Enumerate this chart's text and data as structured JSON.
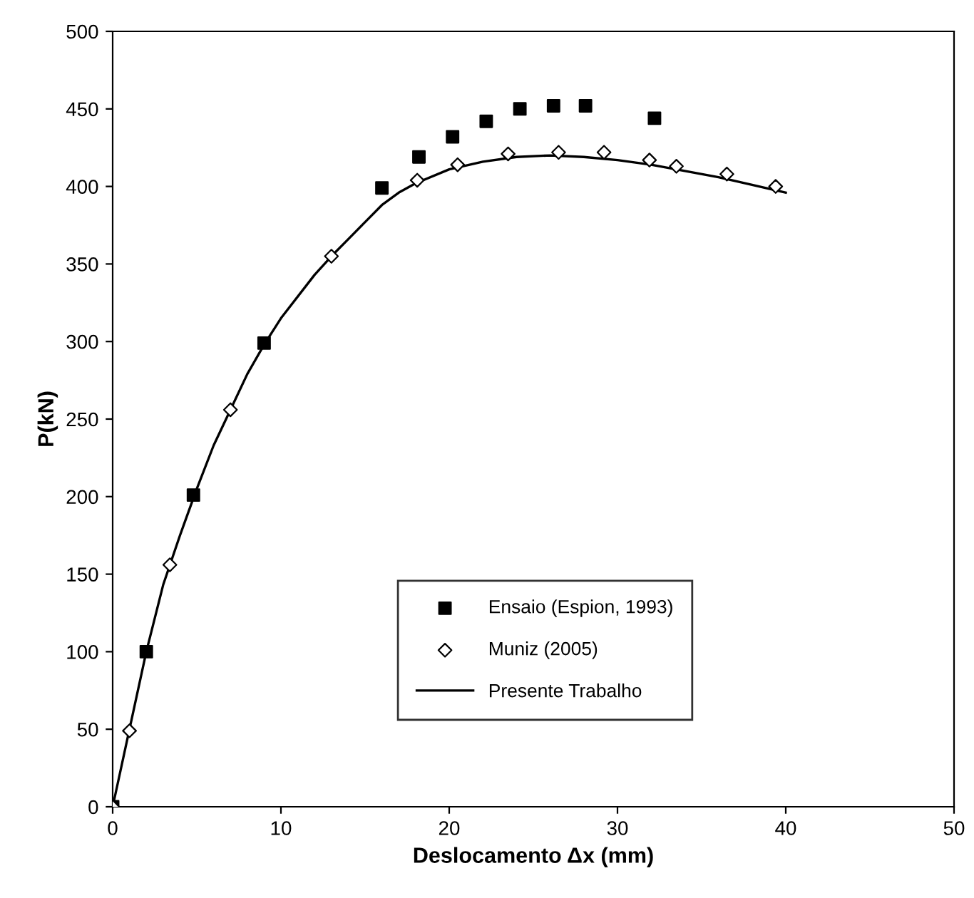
{
  "chart_data": {
    "type": "scatter",
    "xlabel": "Deslocamento Δx (mm)",
    "ylabel": "P(kN)",
    "xlim": [
      0,
      50
    ],
    "ylim": [
      0,
      500
    ],
    "xticks": [
      0,
      10,
      20,
      30,
      40,
      50
    ],
    "yticks": [
      0,
      50,
      100,
      150,
      200,
      250,
      300,
      350,
      400,
      450,
      500
    ],
    "grid": false,
    "legend": "bottom right",
    "series": [
      {
        "name": "Ensaio (Espion, 1993)",
        "marker": "square",
        "color": "#000000",
        "x": [
          0,
          2,
          4.8,
          9,
          16,
          18.2,
          20.2,
          22.2,
          24.2,
          26.2,
          28.1,
          32.2
        ],
        "values": [
          0,
          100,
          201,
          299,
          399,
          419,
          432,
          442,
          450,
          452,
          452,
          444
        ]
      },
      {
        "name": "Muniz (2005)",
        "marker": "diamond",
        "color": "#000000",
        "x": [
          0,
          1,
          3.4,
          7,
          13,
          18.1,
          20.5,
          23.5,
          26.5,
          29.2,
          31.9,
          33.5,
          36.5,
          39.4
        ],
        "values": [
          0,
          49,
          156,
          256,
          355,
          404,
          414,
          421,
          422,
          422,
          417,
          413,
          408,
          400
        ]
      },
      {
        "name": "Presente Trabalho",
        "type": "line",
        "marker": "none",
        "line_style": "solid",
        "color": "#000000",
        "x": [
          0,
          1,
          2,
          3,
          4,
          5,
          6,
          7,
          8,
          9,
          10,
          12,
          13,
          14,
          15,
          16,
          17,
          18,
          20,
          22,
          24,
          26,
          28,
          30,
          32,
          34,
          36,
          38,
          40
        ],
        "values": [
          0,
          50,
          100,
          143,
          175,
          205,
          233,
          256,
          279,
          298,
          315,
          343,
          355,
          366,
          377,
          388,
          396,
          402,
          411,
          416,
          419,
          420,
          419,
          417,
          414,
          410,
          406,
          401,
          396
        ]
      }
    ]
  }
}
